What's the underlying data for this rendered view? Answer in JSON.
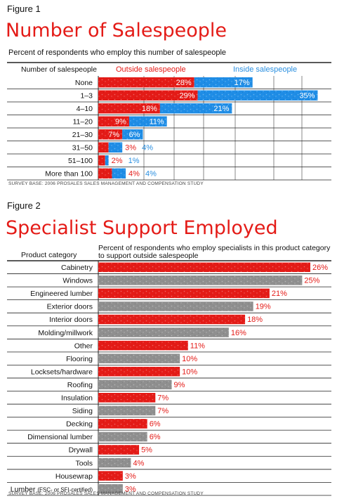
{
  "colors": {
    "outside": "#e41b17",
    "inside": "#1f8de6",
    "gray": "#8f8f8f",
    "red_text": "#e41b17",
    "blue_text": "#2a8fe0"
  },
  "figure1": {
    "label": "Figure 1",
    "title": "Number of Salespeople",
    "subtitle": "Percent of respondents who employ this number of salespeople",
    "col_header": "Number of salespeople",
    "source": "SURVEY BASE: 2006 PROSALES SALES MANAGEMENT AND COMPENSATION STUDY"
  },
  "figure2": {
    "label": "Figure 2",
    "title": "Specialist Support Employed",
    "col_header": "Product category",
    "subtitle_line1": "Percent of respondents who employ specialists in this product category",
    "subtitle_line2": "to support outside salespeople",
    "source": "SURVEY BASE: 2006 PROSALES SALES MANAGEMENT AND COMPENSATION STUDY"
  },
  "chart_data": [
    {
      "type": "bar",
      "orientation": "horizontal",
      "stacked": true,
      "title": "Number of Salespeople",
      "subtitle": "Percent of respondents who employ this number of salespeople",
      "categories": [
        "None",
        "1–3",
        "4–10",
        "11–20",
        "21–30",
        "31–50",
        "51–100",
        "More than 100"
      ],
      "series": [
        {
          "name": "Outside salespeople",
          "values": [
            28,
            29,
            18,
            9,
            7,
            3,
            2,
            4
          ],
          "labels": [
            "28%",
            "29%",
            "18%",
            "9%",
            "7%",
            "3%",
            "2%",
            "4%"
          ]
        },
        {
          "name": "Inside salespeople",
          "values": [
            17,
            35,
            21,
            11,
            6,
            4,
            1,
            4
          ],
          "labels": [
            "17%",
            "35%",
            "21%",
            "11%",
            "6%",
            "4%",
            "1%",
            "4%"
          ]
        }
      ],
      "xlim": [
        0,
        68
      ],
      "grid": true,
      "legend": "top"
    },
    {
      "type": "bar",
      "orientation": "horizontal",
      "title": "Specialist Support Employed",
      "categories": [
        "Cabinetry",
        "Windows",
        "Engineered lumber",
        "Exterior doors",
        "Interior doors",
        "Molding/millwork",
        "Other",
        "Flooring",
        "Locksets/hardware",
        "Roofing",
        "Insulation",
        "Siding",
        "Decking",
        "Dimensional lumber",
        "Drywall",
        "Tools",
        "Housewrap",
        "Lumber"
      ],
      "category_notes": [
        "",
        "",
        "",
        "",
        "",
        "",
        "",
        "",
        "",
        "",
        "",
        "",
        "",
        "",
        "",
        "",
        "",
        "(FSC- or SFI-certified)"
      ],
      "values": [
        26,
        25,
        21,
        19,
        18,
        16,
        11,
        10,
        10,
        9,
        7,
        7,
        6,
        6,
        5,
        4,
        3,
        3
      ],
      "labels": [
        "26%",
        "25%",
        "21%",
        "19%",
        "18%",
        "16%",
        "11%",
        "10%",
        "10%",
        "9%",
        "7%",
        "7%",
        "6%",
        "6%",
        "5%",
        "4%",
        "3%",
        "3%"
      ],
      "bar_colors": [
        "red",
        "gray",
        "red",
        "gray",
        "red",
        "gray",
        "red",
        "gray",
        "red",
        "gray",
        "red",
        "gray",
        "red",
        "gray",
        "red",
        "gray",
        "red",
        "gray"
      ],
      "xlim": [
        0,
        26
      ]
    }
  ]
}
